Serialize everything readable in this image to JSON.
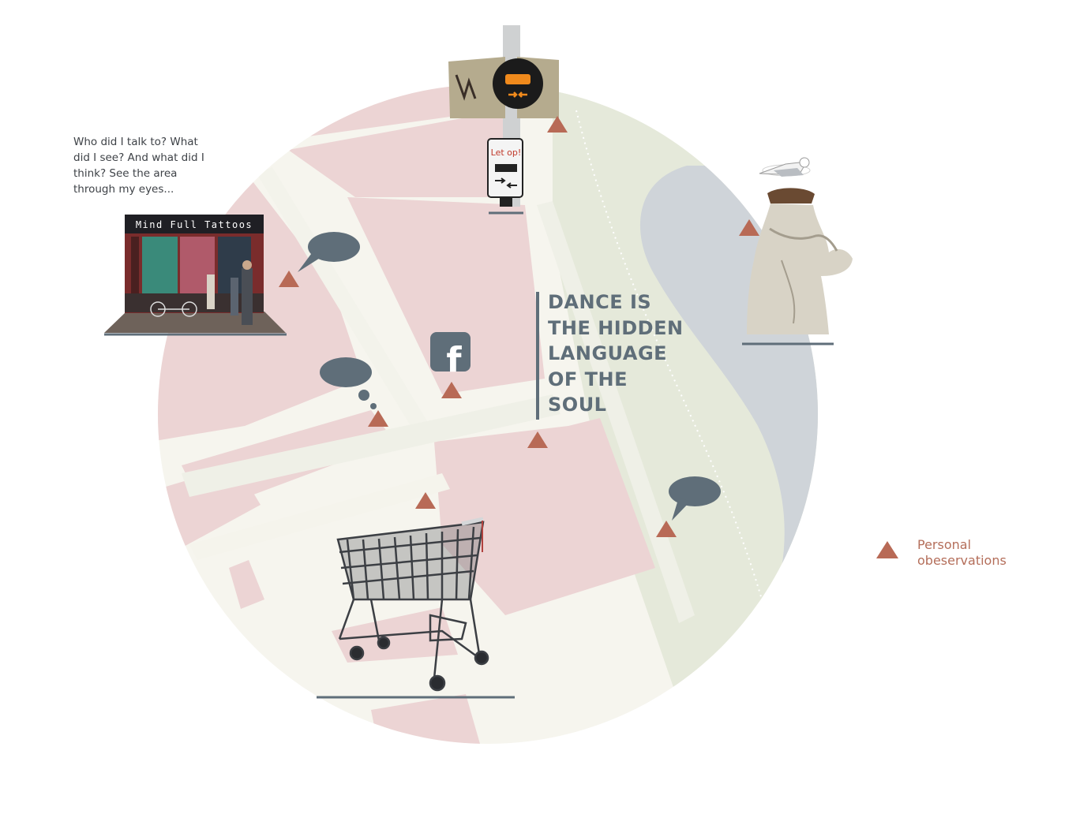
{
  "intro": {
    "text": "Who did I talk to? What did I see? And what did I think? See the area through my eyes..."
  },
  "quote": {
    "lines": [
      "DANCE IS",
      "THE HIDDEN",
      "LANGUAGE",
      "OF THE",
      "SOUL"
    ]
  },
  "legend": {
    "label": "Personal obeservations",
    "marker_icon": "triangle-marker-icon"
  },
  "photos": {
    "tattoo_shop_sign": "Mind Full Tattoos",
    "bus_sign": "Let op!"
  },
  "icons": {
    "facebook": "f"
  },
  "colors": {
    "marker": "#b86a56",
    "bubble": "#5f6e79",
    "quote_text": "#5f6e79",
    "buildings": "#ecd3d3",
    "park": "#e4e8d8",
    "water": "#cfd3d8",
    "street": "#f4f4ec"
  }
}
